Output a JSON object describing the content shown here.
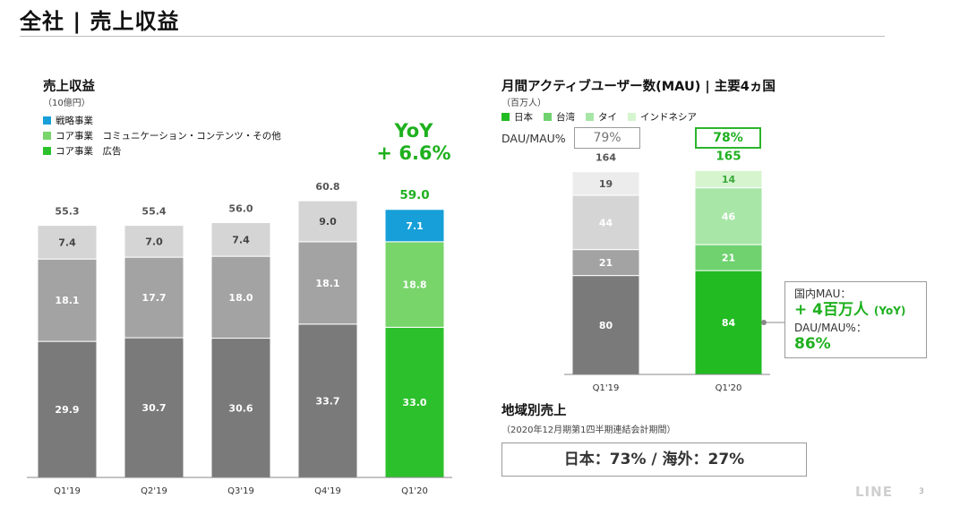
{
  "page": {
    "title": "全社 | 売上収益",
    "logo": "LINE",
    "page_number": "3"
  },
  "revenue_panel": {
    "title": "売上収益",
    "unit": "（10億円）",
    "legend": [
      {
        "label": "戦略事業",
        "color": "#169fd8"
      },
      {
        "label": "コア事業　コミュニケーション・コンテンツ・その他",
        "color": "#77d56a"
      },
      {
        "label": "コア事業　広告",
        "color": "#2cc12c"
      }
    ],
    "yoy_line1": "YoY",
    "yoy_line2": "+ 6.6%"
  },
  "mau_panel": {
    "title": "月間アクティブユーザー数(MAU) | 主要4ヵ国",
    "unit": "（百万人）",
    "legend": [
      {
        "label": "日本",
        "color": "#22bb22"
      },
      {
        "label": "台湾",
        "color": "#6fd26f"
      },
      {
        "label": "タイ",
        "color": "#a8e6a8"
      },
      {
        "label": "インドネシア",
        "color": "#d6f5cf"
      }
    ],
    "dau_label": "DAU/MAU%",
    "dau_values": [
      "79%",
      "78%"
    ],
    "callout": {
      "line1": "国内MAU：",
      "line2_main": "+ 4百万人",
      "line2_suffix": "(YoY)",
      "line3": "DAU/MAU%：",
      "line4": "86%"
    }
  },
  "region_panel": {
    "title": "地域別売上",
    "subtitle": "（2020年12月期第1四半期連結会計期間）",
    "value": "日本：73% / 海外：27%"
  },
  "chart_data": [
    {
      "type": "bar",
      "stacked": true,
      "categories": [
        "Q1'19",
        "Q2'19",
        "Q3'19",
        "Q4'19",
        "Q1'20"
      ],
      "series": [
        {
          "name": "コア事業　広告",
          "values": [
            29.9,
            30.7,
            30.6,
            33.7,
            33.0
          ]
        },
        {
          "name": "コア事業　コミュニケーション・コンテンツ・その他",
          "values": [
            18.1,
            17.7,
            18.0,
            18.1,
            18.8
          ]
        },
        {
          "name": "戦略事業",
          "values": [
            7.4,
            7.0,
            7.4,
            9.0,
            7.1
          ]
        }
      ],
      "totals": [
        55.3,
        55.4,
        56.0,
        60.8,
        59.0
      ],
      "colors_past": [
        "#7a7a7a",
        "#a3a3a3",
        "#d5d5d5"
      ],
      "colors_current": [
        "#2cc12c",
        "#77d56a",
        "#169fd8"
      ],
      "ylim": [
        0,
        65
      ]
    },
    {
      "type": "bar",
      "stacked": true,
      "categories": [
        "Q1'19",
        "Q1'20"
      ],
      "series": [
        {
          "name": "日本",
          "values": [
            80,
            84
          ]
        },
        {
          "name": "台湾",
          "values": [
            21,
            21
          ]
        },
        {
          "name": "タイ",
          "values": [
            44,
            46
          ]
        },
        {
          "name": "インドネシア",
          "values": [
            19,
            14
          ]
        }
      ],
      "totals": [
        164,
        165
      ],
      "colors_past": [
        "#7a7a7a",
        "#a3a3a3",
        "#d5d5d5",
        "#ececec"
      ],
      "colors_current": [
        "#22bb22",
        "#6fd26f",
        "#a8e6a8",
        "#d6f5cf"
      ],
      "ylim": [
        0,
        180
      ]
    }
  ]
}
